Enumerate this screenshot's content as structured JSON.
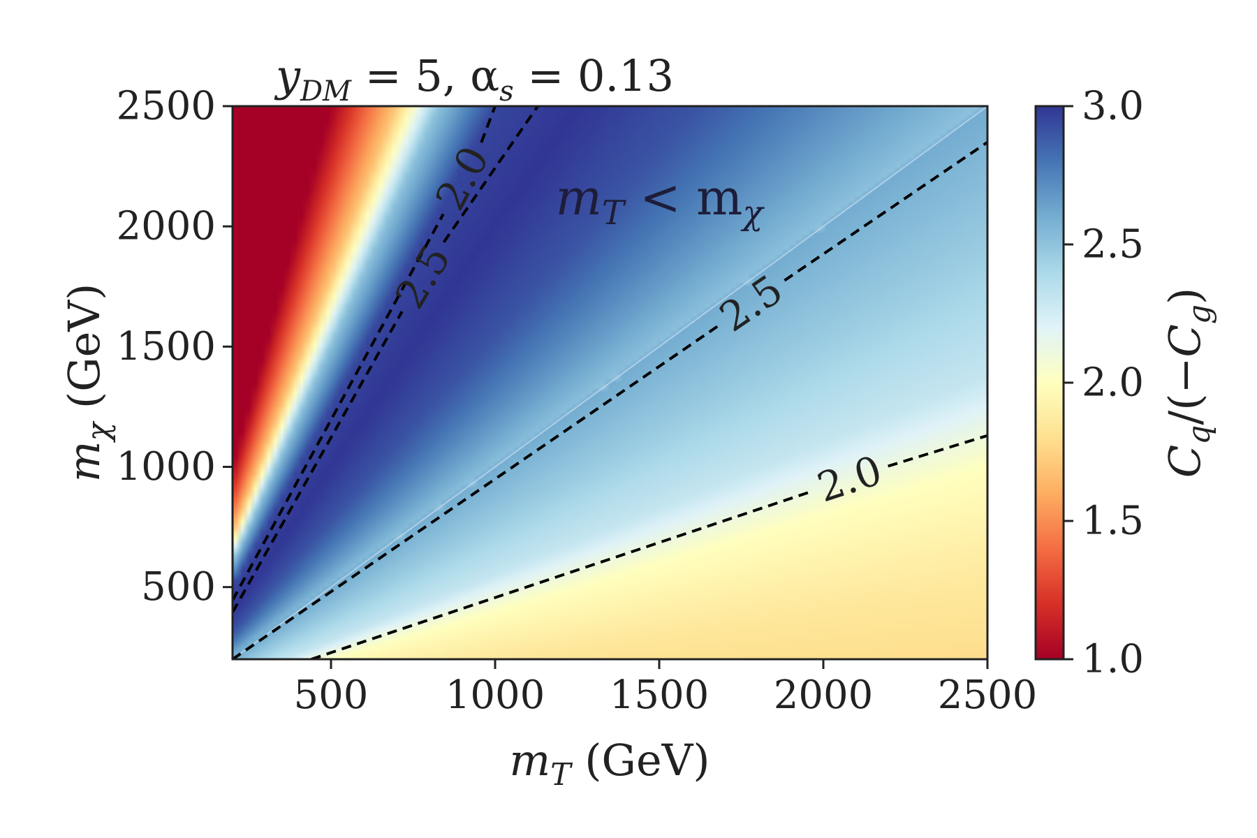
{
  "chart_data": {
    "type": "heatmap",
    "title": "y_DM = 5, α_s = 0.13",
    "title_parts": {
      "y_sub": "DM",
      "rest": " = 5, α",
      "alpha_sub": "s",
      "value": " = 0.13"
    },
    "xlabel": "m_T (GeV)",
    "ylabel": "m_χ (GeV)",
    "colorbar_label": "C_q/(−C_g)",
    "x_range": [
      200,
      2500
    ],
    "y_range": [
      200,
      2500
    ],
    "x_ticks": [
      500,
      1000,
      1500,
      2000,
      2500
    ],
    "y_ticks": [
      500,
      1000,
      1500,
      2000,
      2500
    ],
    "x_tick_labels": [
      "500",
      "1000",
      "1500",
      "2000",
      "2500"
    ],
    "y_tick_labels": [
      "500",
      "1000",
      "1500",
      "2000",
      "2500"
    ],
    "colorbar_range": [
      1.0,
      3.0
    ],
    "colorbar_ticks": [
      1.0,
      1.5,
      2.0,
      2.5,
      3.0
    ],
    "colorbar_tick_labels": [
      "1.0",
      "1.5",
      "2.0",
      "2.5",
      "3.0"
    ],
    "colormap": "RdYlBu",
    "colormap_stops": [
      "#a50026",
      "#d73027",
      "#f46d43",
      "#fdae61",
      "#fee090",
      "#ffffbf",
      "#e0f3f8",
      "#abd9e9",
      "#74add1",
      "#4575b4",
      "#313695"
    ],
    "region_label": {
      "text": "m_T < m_χ",
      "x": 1500,
      "y": 2050
    },
    "contours": [
      {
        "level": 2.0,
        "label": "2.0",
        "region": "m_T < m_χ",
        "x": [
          200,
          1000
        ],
        "y": [
          445,
          2500
        ],
        "label_at": [
          900,
          2200
        ]
      },
      {
        "level": 2.5,
        "label": "2.5",
        "region": "m_T < m_χ",
        "x": [
          200,
          1130
        ],
        "y": [
          395,
          2500
        ],
        "label_at": [
          780,
          1790
        ]
      },
      {
        "level": 2.5,
        "label": "2.5",
        "region": "m_T > m_χ",
        "x": [
          200,
          2500
        ],
        "y": [
          200,
          2350
        ],
        "label_at": [
          1780,
          1680
        ]
      },
      {
        "level": 2.0,
        "label": "2.0",
        "region": "m_T > m_χ",
        "x": [
          440,
          2500
        ],
        "y": [
          200,
          1130
        ],
        "label_at": [
          2080,
          950
        ]
      }
    ],
    "heatmap_samples": {
      "m_T_lt_m_chi": {
        "ratio": [
          0.0,
          0.2,
          0.28,
          0.33,
          0.4,
          0.5,
          0.65,
          0.82,
          1.0
        ],
        "value": [
          1.0,
          1.0,
          1.7,
          2.5,
          2.95,
          3.0,
          2.9,
          2.7,
          2.5
        ]
      },
      "m_T_gt_m_chi": {
        "ratio": [
          0.0,
          0.2,
          0.4,
          0.55,
          0.75,
          1.0
        ],
        "value": [
          1.75,
          1.85,
          2.0,
          2.3,
          2.45,
          2.6
        ]
      }
    }
  }
}
